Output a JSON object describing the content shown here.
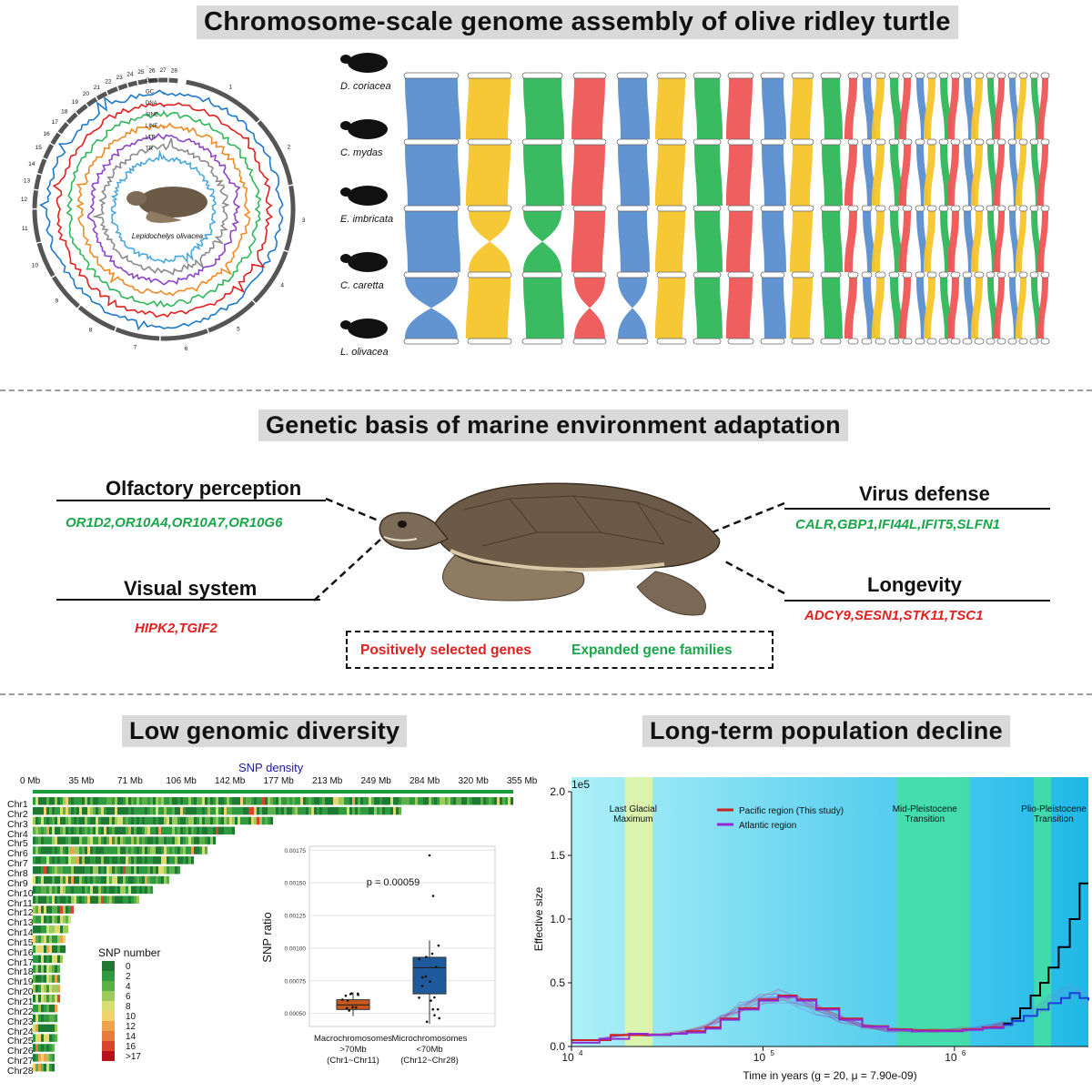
{
  "sections": {
    "assembly_title": "Chromosome-scale genome assembly of olive ridley turtle",
    "adaptation_title": "Genetic basis of marine environment adaptation",
    "diversity_title": "Low genomic diversity",
    "decline_title": "Long-term population decline"
  },
  "circos": {
    "track_labels": [
      "Gene",
      "GC",
      "DNA",
      "SINE",
      "LINE",
      "LTR",
      "TR"
    ],
    "species": "Lepidochelys olivacea",
    "numbers": [
      "1",
      "2",
      "3",
      "4",
      "5",
      "6",
      "7",
      "8",
      "9",
      "10",
      "11",
      "12",
      "13",
      "14",
      "15",
      "16",
      "17",
      "18",
      "19",
      "20",
      "21",
      "22",
      "23",
      "24",
      "25",
      "26",
      "27",
      "28"
    ]
  },
  "synteny": {
    "species": [
      "D. coriacea",
      "C. mydas",
      "E. imbricata",
      "C. caretta",
      "L. olivacea"
    ],
    "colors": [
      "#5b8ed0",
      "#f6c52a",
      "#2fb75a",
      "#ee5656"
    ]
  },
  "adaptation": {
    "olfactory": {
      "title": "Olfactory perception",
      "genes": "OR1D2,OR10A4,OR10A7,OR10G6"
    },
    "visual": {
      "title": "Visual system",
      "genes": "HIPK2,TGIF2"
    },
    "virus": {
      "title": "Virus defense",
      "genes": "CALR,GBP1,IFI44L,IFIT5,SLFN1"
    },
    "longevity": {
      "title": "Longevity",
      "genes": "ADCY9,SESN1,STK11,TSC1"
    },
    "legend": {
      "positive": "Positively selected genes",
      "expanded": "Expanded gene families"
    },
    "colors": {
      "positive": "#e02020",
      "expanded": "#1aa64a"
    }
  },
  "snp": {
    "title": "SNP density",
    "axis_ticks": [
      "0 Mb",
      "35 Mb",
      "71 Mb",
      "106 Mb",
      "142 Mb",
      "177 Mb",
      "213 Mb",
      "249 Mb",
      "284 Mb",
      "320 Mb",
      "355 Mb"
    ],
    "chromosomes": [
      "Chr1",
      "Chr2",
      "Chr3",
      "Chr4",
      "Chr5",
      "Chr6",
      "Chr7",
      "Chr8",
      "Chr9",
      "Chr10",
      "Chr11",
      "Chr12",
      "Chr13",
      "Chr14",
      "Chr15",
      "Chr16",
      "Chr17",
      "Chr18",
      "Chr19",
      "Chr20",
      "Chr21",
      "Chr22",
      "Chr23",
      "Chr24",
      "Chr25",
      "Chr26",
      "Chr27",
      "Chr28"
    ],
    "legend_title": "SNP number",
    "legend_values": [
      "0",
      "2",
      "4",
      "6",
      "8",
      "10",
      "12",
      "14",
      "16",
      ">17"
    ],
    "legend_colors": [
      "#1e7a33",
      "#2f9a3f",
      "#5cb04a",
      "#9ccb5a",
      "#d8df72",
      "#f2d26d",
      "#f0a24a",
      "#e87a3c",
      "#d9442c",
      "#b5121b"
    ]
  },
  "boxplot": {
    "ylabel": "SNP ratio",
    "pvalue": "p = 0.00059",
    "yticks": [
      "0.00050",
      "0.00075",
      "0.00100",
      "0.00125",
      "0.00150",
      "0.00175"
    ],
    "groups": [
      {
        "name": "Macrochromosomes",
        "sub1": ">70Mb",
        "sub2": "(Chr1~Chr11)",
        "color": "#c9581e",
        "q1": 0.00053,
        "median": 0.000565,
        "q3": 0.000605,
        "min": 0.00048,
        "max": 0.00066
      },
      {
        "name": "Microchromosomes",
        "sub1": "<70Mb",
        "sub2": "(Chr12~Chr28)",
        "color": "#1f5a9c",
        "q1": 0.00065,
        "median": 0.00085,
        "q3": 0.00093,
        "min": 0.00042,
        "max": 0.00106
      }
    ]
  },
  "chart_data": {
    "type": "line",
    "title": "",
    "xlabel": "Time in years (g = 20, μ = 7.90e-09)",
    "ylabel": "Effective size",
    "x_scale": "log",
    "xlim": [
      10000,
      5000000
    ],
    "ylim": [
      0,
      200000
    ],
    "y_multiplier": "1e5",
    "yticks": [
      "0.0",
      "0.5",
      "1.0",
      "1.5",
      "2.0"
    ],
    "xticks": [
      "10^4",
      "10^5",
      "10^6"
    ],
    "legend": "top-center",
    "annotations": [
      {
        "label1": "Last Glacial",
        "label2": "Maximum",
        "from": 19000,
        "to": 26500,
        "color": "#e6f6a0"
      },
      {
        "label1": "Mid-Pleistocene",
        "label2": "Transition",
        "from": 500000,
        "to": 1200000,
        "color": "#44e0a0"
      },
      {
        "label1": "Plio-Pleistocene",
        "label2": "Transition",
        "from": 2600000,
        "to": 3200000,
        "color": "#44e0a0"
      }
    ],
    "series": [
      {
        "name": "Pacific region (This study)",
        "color": "#cc2222",
        "points": [
          [
            10000,
            5000
          ],
          [
            16000,
            5000
          ],
          [
            16000,
            9000
          ],
          [
            27000,
            9000
          ],
          [
            33000,
            10000
          ],
          [
            40000,
            12000
          ],
          [
            50000,
            15000
          ],
          [
            60000,
            22000
          ],
          [
            75000,
            30000
          ],
          [
            95000,
            37000
          ],
          [
            120000,
            40000
          ],
          [
            150000,
            37000
          ],
          [
            190000,
            30000
          ],
          [
            250000,
            22000
          ],
          [
            330000,
            16000
          ],
          [
            450000,
            13500
          ],
          [
            600000,
            12500
          ],
          [
            800000,
            12500
          ],
          [
            1100000,
            13500
          ],
          [
            1400000,
            15000
          ],
          [
            1800000,
            18000
          ]
        ]
      },
      {
        "name": "Atlantic region",
        "color": "#8e2bd6",
        "points": [
          [
            10000,
            3000
          ],
          [
            14000,
            3000
          ],
          [
            14000,
            6000
          ],
          [
            20000,
            10000
          ],
          [
            25000,
            9000
          ],
          [
            33000,
            10000
          ],
          [
            40000,
            11000
          ],
          [
            50000,
            14000
          ],
          [
            60000,
            21000
          ],
          [
            75000,
            29000
          ],
          [
            95000,
            36000
          ],
          [
            120000,
            39000
          ],
          [
            150000,
            36000
          ],
          [
            190000,
            29000
          ],
          [
            250000,
            21000
          ],
          [
            330000,
            15500
          ],
          [
            450000,
            13000
          ],
          [
            600000,
            12000
          ],
          [
            800000,
            12000
          ],
          [
            1100000,
            13000
          ],
          [
            1400000,
            14500
          ],
          [
            1800000,
            17000
          ]
        ]
      },
      {
        "name": "",
        "color": "#000000",
        "points": [
          [
            1800000,
            18000
          ],
          [
            2000000,
            22000
          ],
          [
            2200000,
            30000
          ],
          [
            2500000,
            40000
          ],
          [
            2800000,
            50000
          ],
          [
            3100000,
            62000
          ],
          [
            3500000,
            78000
          ],
          [
            4000000,
            100000
          ],
          [
            4500000,
            128000
          ],
          [
            5000000,
            128000
          ]
        ]
      },
      {
        "name": "",
        "color": "#1d3fd6",
        "points": [
          [
            1800000,
            17000
          ],
          [
            2000000,
            20000
          ],
          [
            2300000,
            24000
          ],
          [
            2700000,
            29000
          ],
          [
            3100000,
            34000
          ],
          [
            3600000,
            38000
          ],
          [
            4000000,
            42000
          ],
          [
            4500000,
            38000
          ],
          [
            5000000,
            36000
          ]
        ]
      }
    ]
  }
}
